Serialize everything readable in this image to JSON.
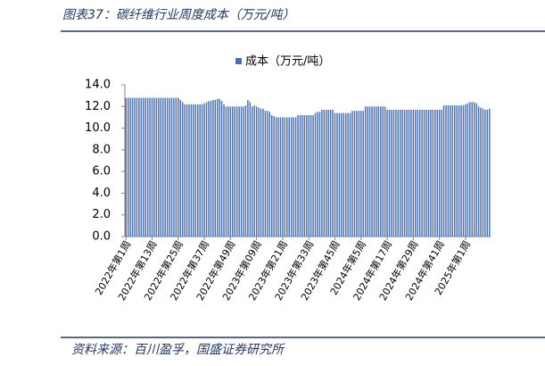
{
  "header": {
    "title": "图表37：碳纤维行业周度成本（万元/吨）"
  },
  "footer": {
    "source": "资料来源：百川盈孚，国盛证券研究所"
  },
  "chart_data": {
    "type": "bar",
    "series": [
      {
        "name": "成本（万元/吨）",
        "color": "#4a6fb5",
        "values": [
          12.8,
          12.8,
          12.8,
          12.8,
          12.8,
          12.8,
          12.8,
          12.8,
          12.8,
          12.8,
          12.8,
          12.8,
          12.8,
          12.8,
          12.8,
          12.8,
          12.8,
          12.8,
          12.8,
          12.8,
          12.8,
          12.8,
          12.8,
          12.8,
          12.8,
          12.6,
          12.4,
          12.2,
          12.2,
          12.2,
          12.2,
          12.2,
          12.2,
          12.2,
          12.2,
          12.2,
          12.3,
          12.4,
          12.5,
          12.5,
          12.6,
          12.6,
          12.7,
          12.7,
          12.5,
          12.2,
          12.0,
          12.0,
          12.0,
          12.0,
          12.0,
          12.0,
          12.0,
          12.0,
          12.0,
          12.1,
          12.6,
          12.4,
          12.0,
          12.1,
          12.0,
          11.9,
          11.8,
          11.8,
          11.6,
          11.6,
          11.5,
          11.2,
          11.1,
          11.0,
          11.0,
          11.0,
          11.0,
          11.0,
          11.0,
          11.0,
          11.0,
          11.0,
          11.0,
          11.2,
          11.2,
          11.2,
          11.2,
          11.2,
          11.2,
          11.2,
          11.2,
          11.4,
          11.5,
          11.5,
          11.7,
          11.7,
          11.7,
          11.7,
          11.7,
          11.7,
          11.4,
          11.4,
          11.4,
          11.4,
          11.4,
          11.4,
          11.4,
          11.4,
          11.6,
          11.6,
          11.6,
          11.6,
          11.6,
          11.6,
          12.0,
          12.0,
          12.0,
          12.0,
          12.0,
          12.0,
          12.0,
          12.0,
          12.0,
          12.0,
          11.7,
          11.7,
          11.7,
          11.7,
          11.7,
          11.7,
          11.7,
          11.7,
          11.7,
          11.7,
          11.7,
          11.7,
          11.7,
          11.7,
          11.7,
          11.7,
          11.7,
          11.7,
          11.7,
          11.7,
          11.7,
          11.7,
          11.7,
          11.7,
          11.7,
          11.7,
          12.1,
          12.1,
          12.1,
          12.1,
          12.1,
          12.1,
          12.1,
          12.1,
          12.1,
          12.1,
          12.2,
          12.3,
          12.4,
          12.4,
          12.4,
          12.3,
          12.0,
          11.9,
          11.8,
          11.7,
          11.7,
          11.8
        ]
      }
    ],
    "categories": [
      "2022年第1周",
      null,
      null,
      null,
      null,
      null,
      null,
      null,
      null,
      null,
      null,
      null,
      "2022年第13周",
      null,
      null,
      null,
      null,
      null,
      null,
      null,
      null,
      null,
      null,
      null,
      "2022年第25周",
      null,
      null,
      null,
      null,
      null,
      null,
      null,
      null,
      null,
      null,
      null,
      "2022年第37周",
      null,
      null,
      null,
      null,
      null,
      null,
      null,
      null,
      null,
      null,
      null,
      "2022年第49周",
      null,
      null,
      null,
      null,
      null,
      null,
      null,
      null,
      null,
      null,
      null,
      "2023年第09周",
      null,
      null,
      null,
      null,
      null,
      null,
      null,
      null,
      null,
      null,
      null,
      "2023年第21周",
      null,
      null,
      null,
      null,
      null,
      null,
      null,
      null,
      null,
      null,
      null,
      "2023年第33周",
      null,
      null,
      null,
      null,
      null,
      null,
      null,
      null,
      null,
      null,
      null,
      "2023年第45周",
      null,
      null,
      null,
      null,
      null,
      null,
      null,
      null,
      null,
      null,
      null,
      "2024年第5周",
      null,
      null,
      null,
      null,
      null,
      null,
      null,
      null,
      null,
      null,
      null,
      "2024年第17周",
      null,
      null,
      null,
      null,
      null,
      null,
      null,
      null,
      null,
      null,
      null,
      "2024年第29周",
      null,
      null,
      null,
      null,
      null,
      null,
      null,
      null,
      null,
      null,
      null,
      "2024年第41周",
      null,
      null,
      null,
      null,
      null,
      null,
      null,
      null,
      null,
      null,
      null,
      "2025年第1周",
      null,
      null,
      null,
      null,
      null,
      null,
      null,
      null,
      null,
      null,
      null
    ],
    "ylim": [
      0,
      14
    ],
    "yticks": [
      {
        "value": 0,
        "label": "0.0"
      },
      {
        "value": 2,
        "label": "2.0"
      },
      {
        "value": 4,
        "label": "4.0"
      },
      {
        "value": 6,
        "label": "6.0"
      },
      {
        "value": 8,
        "label": "8.0"
      },
      {
        "value": 10,
        "label": "10.0"
      },
      {
        "value": 12,
        "label": "12.0"
      },
      {
        "value": 14,
        "label": "14.0"
      }
    ],
    "legend": "top"
  }
}
